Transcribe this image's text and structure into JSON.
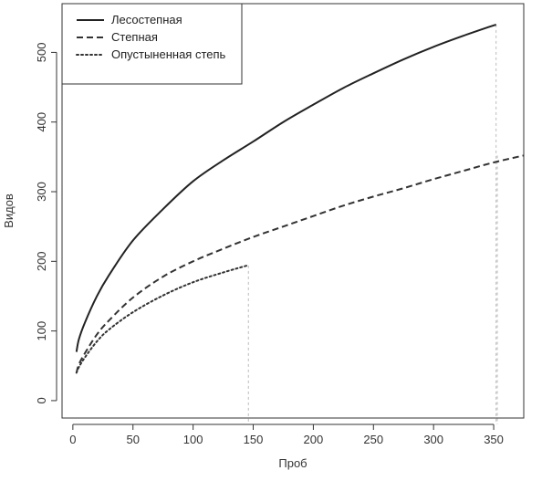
{
  "chart_data": {
    "type": "line",
    "xlabel": "Проб",
    "ylabel": "Видов",
    "xlim": [
      -9,
      375
    ],
    "ylim": [
      -25,
      570
    ],
    "xticks": [
      0,
      50,
      100,
      150,
      200,
      250,
      300,
      350
    ],
    "yticks": [
      0,
      100,
      200,
      300,
      400,
      500
    ],
    "legend_position": "top-left",
    "grid": false,
    "series": [
      {
        "name": "Лесостепная",
        "style": "solid",
        "color": "#222222",
        "x": [
          3,
          5,
          10,
          20,
          30,
          50,
          75,
          100,
          125,
          150,
          175,
          200,
          225,
          250,
          275,
          300,
          325,
          352
        ],
        "y": [
          70,
          88,
          112,
          150,
          180,
          230,
          275,
          315,
          345,
          372,
          400,
          425,
          449,
          470,
          490,
          508,
          524,
          540
        ],
        "end_marker_x": 352
      },
      {
        "name": "Степная",
        "style": "dashed",
        "color": "#333333",
        "x": [
          3,
          5,
          10,
          20,
          30,
          50,
          75,
          100,
          125,
          150,
          175,
          200,
          225,
          250,
          275,
          300,
          325,
          350,
          375
        ],
        "y": [
          40,
          52,
          68,
          95,
          115,
          148,
          178,
          200,
          218,
          235,
          250,
          265,
          280,
          293,
          305,
          318,
          330,
          342,
          352
        ],
        "end_marker_x": 353
      },
      {
        "name": "Опустыненная степь",
        "style": "dotted",
        "color": "#333333",
        "x": [
          3,
          5,
          10,
          20,
          30,
          50,
          75,
          100,
          125,
          145
        ],
        "y": [
          40,
          48,
          62,
          85,
          102,
          127,
          151,
          170,
          184,
          194
        ],
        "end_marker_x": 146
      }
    ]
  }
}
